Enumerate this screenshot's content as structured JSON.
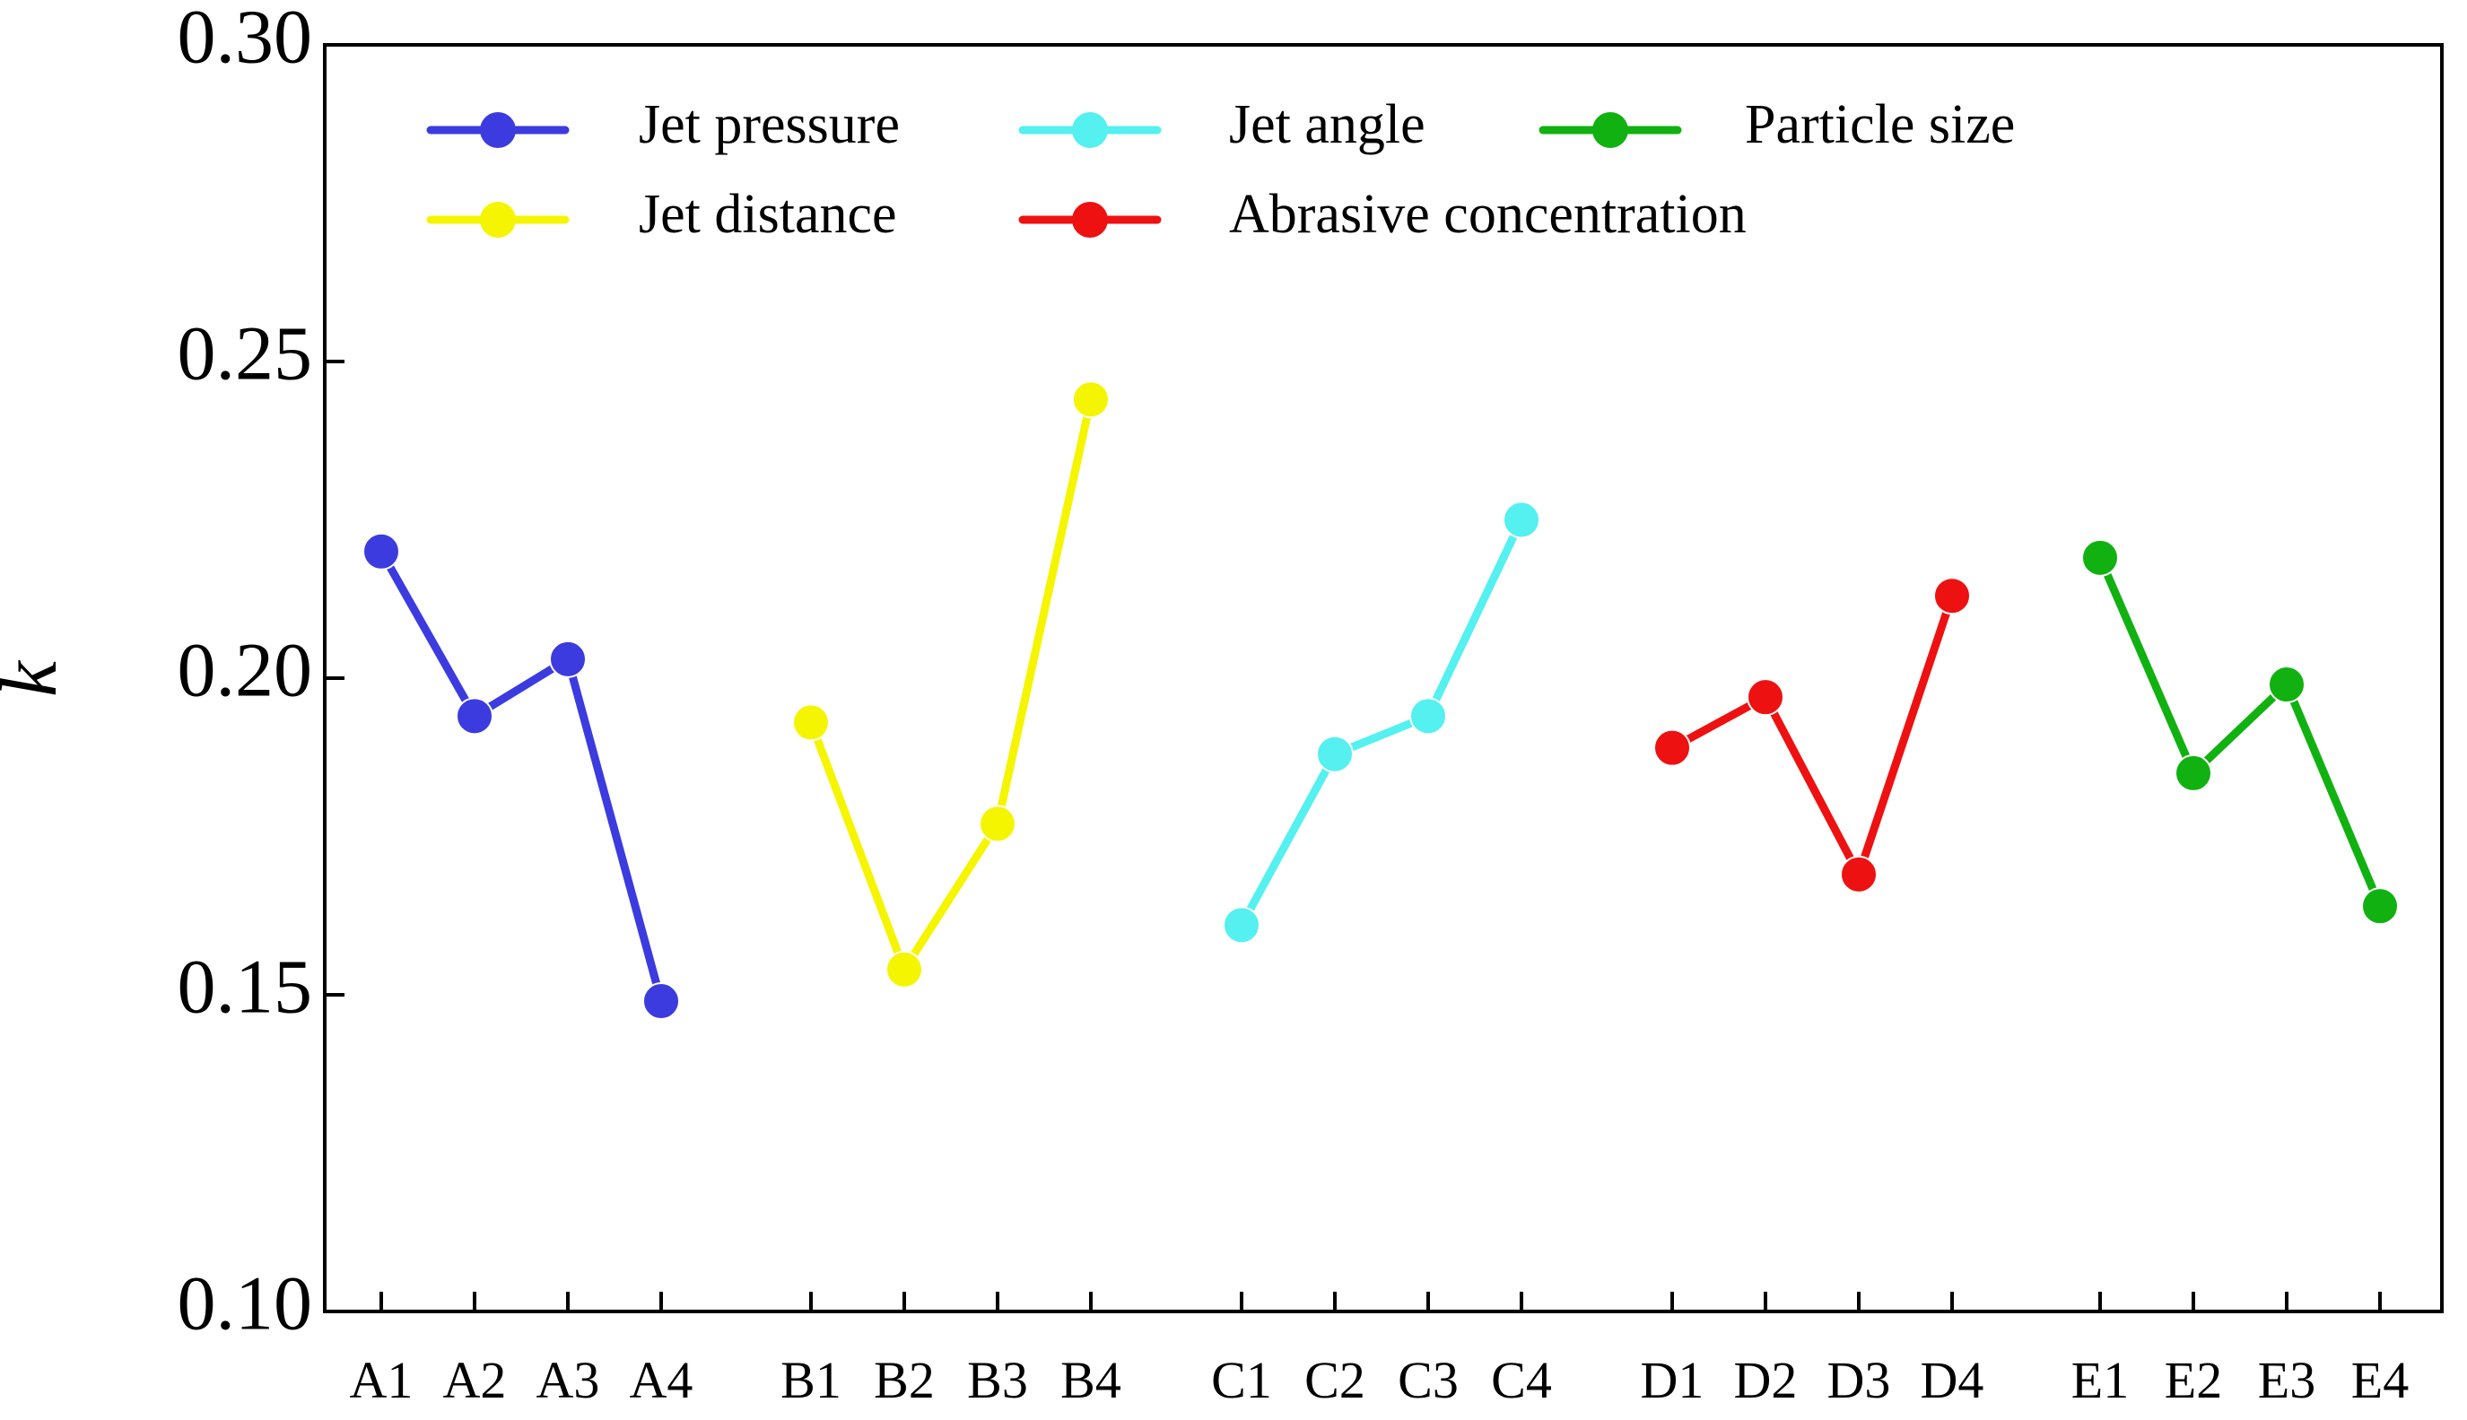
{
  "chart_data": {
    "type": "line",
    "title": "",
    "xlabel": "",
    "ylabel": "k",
    "ylim": [
      0.1,
      0.3
    ],
    "yticks": [
      "0.10",
      "0.15",
      "0.20",
      "0.25",
      "0.30"
    ],
    "grid": false,
    "legend_position": "top",
    "series": [
      {
        "name": "Jet pressure",
        "color": "#3b3bdf",
        "categories": [
          "A1",
          "A2",
          "A3",
          "A4"
        ],
        "values": [
          0.22,
          0.194,
          0.203,
          0.149
        ]
      },
      {
        "name": "Jet distance",
        "color": "#f5f500",
        "categories": [
          "B1",
          "B2",
          "B3",
          "B4"
        ],
        "values": [
          0.193,
          0.154,
          0.177,
          0.244
        ]
      },
      {
        "name": "Jet angle",
        "color": "#55f0f0",
        "categories": [
          "C1",
          "C2",
          "C3",
          "C4"
        ],
        "values": [
          0.161,
          0.188,
          0.194,
          0.225
        ]
      },
      {
        "name": "Abrasive concentration",
        "color": "#ee1111",
        "categories": [
          "D1",
          "D2",
          "D3",
          "D4"
        ],
        "values": [
          0.189,
          0.197,
          0.169,
          0.213
        ]
      },
      {
        "name": "Particle size",
        "color": "#11b111",
        "categories": [
          "E1",
          "E2",
          "E3",
          "E4"
        ],
        "values": [
          0.219,
          0.185,
          0.199,
          0.164
        ]
      }
    ]
  }
}
